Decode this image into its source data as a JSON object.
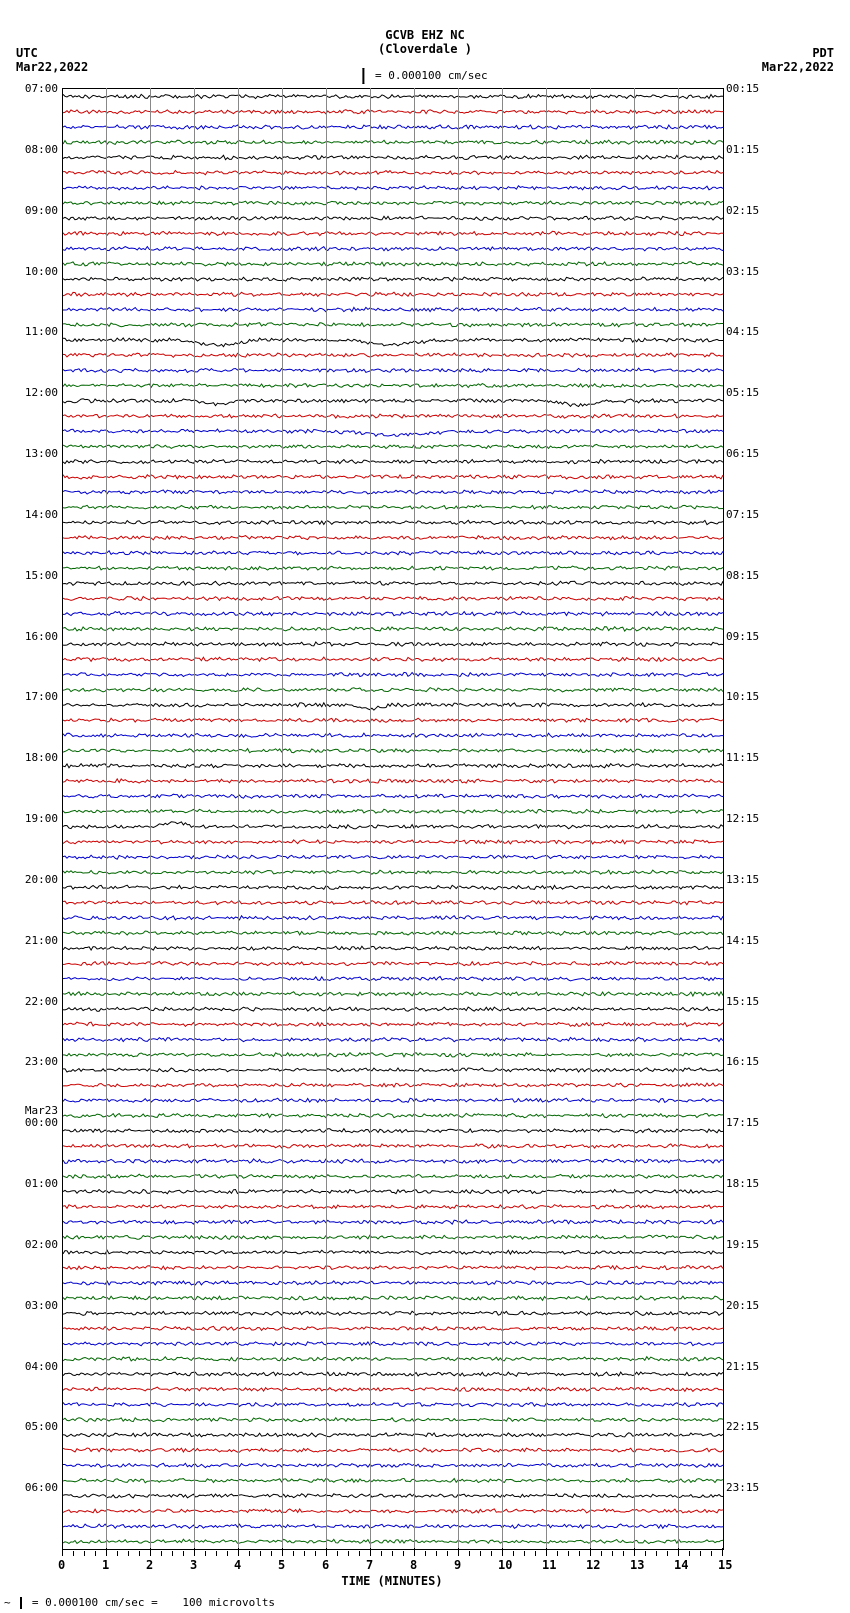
{
  "header": {
    "title_main": "GCVB EHZ NC",
    "title_sub": "(Cloverdale )",
    "scale_label": "= 0.000100 cm/sec",
    "utc_label": "UTC",
    "utc_date": "Mar22,2022",
    "pdt_label": "PDT",
    "pdt_date": "Mar22,2022"
  },
  "seismogram": {
    "type": "helicorder",
    "x_min": 0,
    "x_max": 15,
    "x_tick_step": 1,
    "x_minor_per_major": 4,
    "x_title": "TIME (MINUTES)",
    "plot_bg": "#ffffff",
    "grid_color": "#999999",
    "border_color": "#000000",
    "line_colors": [
      "#000000",
      "#cc0000",
      "#0000cc",
      "#006600"
    ],
    "n_lines": 96,
    "left_date_mark": "Mar23",
    "left_date_mark_hour": 24,
    "left_hours": [
      "07:00",
      "08:00",
      "09:00",
      "10:00",
      "11:00",
      "12:00",
      "13:00",
      "14:00",
      "15:00",
      "16:00",
      "17:00",
      "18:00",
      "19:00",
      "20:00",
      "21:00",
      "22:00",
      "23:00",
      "00:00",
      "01:00",
      "02:00",
      "03:00",
      "04:00",
      "05:00",
      "06:00"
    ],
    "right_hours": [
      "00:15",
      "01:15",
      "02:15",
      "03:15",
      "04:15",
      "05:15",
      "06:15",
      "07:15",
      "08:15",
      "09:15",
      "10:15",
      "11:15",
      "12:15",
      "13:15",
      "14:15",
      "15:15",
      "16:15",
      "17:15",
      "18:15",
      "19:15",
      "20:15",
      "21:15",
      "22:15",
      "23:15"
    ],
    "x_ticks": [
      "0",
      "1",
      "2",
      "3",
      "4",
      "5",
      "6",
      "7",
      "8",
      "9",
      "10",
      "11",
      "12",
      "13",
      "14",
      "15"
    ],
    "amplitude_noise": 1.5,
    "event_dips": [
      {
        "line": 16,
        "x_start": 2.5,
        "x_end": 4.5,
        "depth": 6
      },
      {
        "line": 16,
        "x_start": 6.5,
        "x_end": 8.5,
        "depth": 5
      },
      {
        "line": 20,
        "x_start": 3,
        "x_end": 4,
        "depth": 4
      },
      {
        "line": 20,
        "x_start": 11,
        "x_end": 12.5,
        "depth": 5
      },
      {
        "line": 22,
        "x_start": 6,
        "x_end": 9,
        "depth": 4
      },
      {
        "line": 40,
        "x_start": 6.5,
        "x_end": 7.5,
        "depth": 4
      },
      {
        "line": 48,
        "x_start": 2,
        "x_end": 3,
        "depth": -5
      }
    ]
  },
  "footer": {
    "text_left": "= 0.000100 cm/sec =",
    "text_right": "100 microvolts"
  }
}
